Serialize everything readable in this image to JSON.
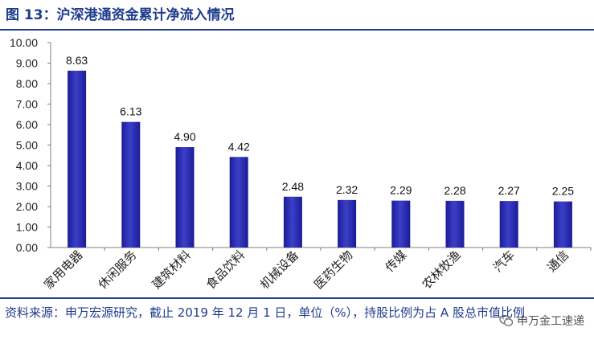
{
  "figure": {
    "title": "图 13：沪深港通资金累计净流入情况",
    "source": "资料来源：申万宏源研究，截止 2019 年 12 月 1 日，单位（%），持股比例为占 A 股总市值比例",
    "watermark": "申万金工速递"
  },
  "colors": {
    "accent": "#1f3d8c",
    "bar": "#1a1c96",
    "bar_highlight": "#3c40c8"
  },
  "chart_data": {
    "type": "bar",
    "categories": [
      "家用电器",
      "休闲服务",
      "建筑材料",
      "食品饮料",
      "机械设备",
      "医药生物",
      "传媒",
      "农林牧渔",
      "汽车",
      "通信"
    ],
    "values": [
      8.63,
      6.13,
      4.9,
      4.42,
      2.48,
      2.32,
      2.29,
      2.28,
      2.27,
      2.25
    ],
    "data_labels": [
      "8.63",
      "6.13",
      "4.90",
      "4.42",
      "2.48",
      "2.32",
      "2.29",
      "2.28",
      "2.27",
      "2.25"
    ],
    "y_ticks": [
      "0.00",
      "1.00",
      "2.00",
      "3.00",
      "4.00",
      "5.00",
      "6.00",
      "7.00",
      "8.00",
      "9.00",
      "10.00"
    ],
    "ylim": [
      0,
      10
    ],
    "grid": false,
    "legend": "none",
    "title": "",
    "xlabel": "",
    "ylabel": ""
  }
}
